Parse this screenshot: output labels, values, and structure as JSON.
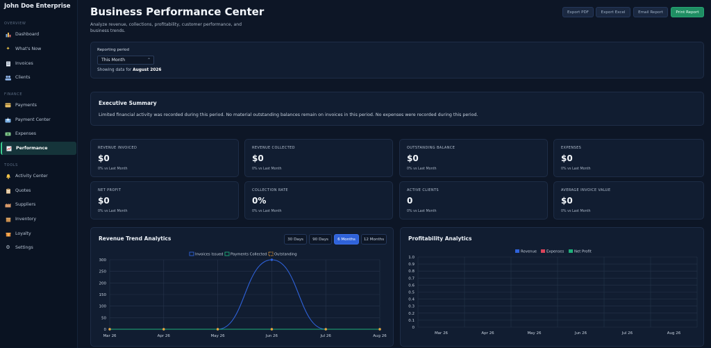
{
  "brand": "John Doe Enterprise",
  "sidebar": {
    "sections": [
      {
        "label": "OVERVIEW",
        "items": [
          {
            "label": "Dashboard",
            "icon": "dashboard-icon"
          },
          {
            "label": "What's Now",
            "icon": "sparkle-icon"
          },
          {
            "label": "Invoices",
            "icon": "invoice-icon"
          },
          {
            "label": "Clients",
            "icon": "users-icon"
          }
        ]
      },
      {
        "label": "FINANCE",
        "items": [
          {
            "label": "Payments",
            "icon": "card-icon"
          },
          {
            "label": "Payment Center",
            "icon": "inbox-icon"
          },
          {
            "label": "Expenses",
            "icon": "expenses-icon"
          },
          {
            "label": "Performance",
            "icon": "chart-icon",
            "active": true
          }
        ]
      },
      {
        "label": "TOOLS",
        "items": [
          {
            "label": "Activity Center",
            "icon": "bell-icon"
          },
          {
            "label": "Quotes",
            "icon": "clipboard-icon"
          },
          {
            "label": "Suppliers",
            "icon": "factory-icon"
          },
          {
            "label": "Inventory",
            "icon": "box-icon"
          },
          {
            "label": "Loyalty",
            "icon": "gift-icon"
          },
          {
            "label": "Settings",
            "icon": "gear-icon"
          }
        ]
      }
    ]
  },
  "header": {
    "title": "Business Performance Center",
    "description": "Analyze revenue, collections, profitability, customer performance, and business trends.",
    "buttons": [
      "Export PDF",
      "Export Excel",
      "Email Report",
      "Print Report"
    ]
  },
  "reporting": {
    "label": "Reporting period",
    "selected": "This Month",
    "showing_prefix": "Showing data for",
    "showing_value": "August 2026"
  },
  "summary": {
    "title": "Executive Summary",
    "text": "Limited financial activity was recorded during this period. No material outstanding balances remain on invoices in this period. No expenses were recorded during this period."
  },
  "kpis": [
    {
      "label": "REVENUE INVOICED",
      "value": "$0",
      "sub": "0% vs Last Month"
    },
    {
      "label": "REVENUE COLLECTED",
      "value": "$0",
      "sub": "0% vs Last Month"
    },
    {
      "label": "OUTSTANDING BALANCE",
      "value": "$0",
      "sub": "0% vs Last Month"
    },
    {
      "label": "EXPENSES",
      "value": "$0",
      "sub": "0% vs Last Month"
    },
    {
      "label": "NET PROFIT",
      "value": "$0",
      "sub": "0% vs Last Month"
    },
    {
      "label": "COLLECTION RATE",
      "value": "0%",
      "sub": "0% vs Last Month"
    },
    {
      "label": "ACTIVE CLIENTS",
      "value": "0",
      "sub": "0% vs Last Month"
    },
    {
      "label": "AVERAGE INVOICE VALUE",
      "value": "$0",
      "sub": "0% vs Last Month"
    }
  ],
  "revenue_chart": {
    "title": "Revenue Trend Analytics",
    "ranges": [
      "30 Days",
      "90 Days",
      "6 Months",
      "12 Months"
    ],
    "active_range": "6 Months"
  },
  "profit_chart": {
    "title": "Profitability Analytics"
  },
  "colors": {
    "accent": "#2f62d9",
    "primary_button": "#1f8e63",
    "invoices": "#2f62d9",
    "payments": "#1fb07a",
    "outstanding": "#f0a13a",
    "revenue": "#2f62d9",
    "expenses": "#d9435a",
    "net_profit": "#1fb07a"
  },
  "chart_data": [
    {
      "type": "line",
      "title": "Revenue Trend Analytics",
      "categories": [
        "Mar 26",
        "Apr 26",
        "May 26",
        "Jun 26",
        "Jul 26",
        "Aug 26"
      ],
      "ylim": [
        0,
        300
      ],
      "yticks": [
        0,
        50,
        100,
        150,
        200,
        250,
        300
      ],
      "series": [
        {
          "name": "Invoices Issued",
          "values": [
            0,
            0,
            0,
            300,
            0,
            0
          ]
        },
        {
          "name": "Payments Collected",
          "values": [
            0,
            0,
            0,
            0,
            0,
            0
          ]
        },
        {
          "name": "Outstanding",
          "values": [
            0,
            0,
            0,
            0,
            0,
            0
          ]
        }
      ],
      "grid": true,
      "legend": "top"
    },
    {
      "type": "bar",
      "title": "Profitability Analytics",
      "categories": [
        "Mar 26",
        "Apr 26",
        "May 26",
        "Jun 26",
        "Jul 26",
        "Aug 26"
      ],
      "ylim": [
        0,
        1.0
      ],
      "yticks": [
        0,
        0.1,
        0.2,
        0.3,
        0.4,
        0.5,
        0.6,
        0.7,
        0.8,
        0.9,
        1.0
      ],
      "series": [
        {
          "name": "Revenue",
          "values": [
            0,
            0,
            0,
            0,
            0,
            0
          ]
        },
        {
          "name": "Expenses",
          "values": [
            0,
            0,
            0,
            0,
            0,
            0
          ]
        },
        {
          "name": "Net Profit",
          "values": [
            0,
            0,
            0,
            0,
            0,
            0
          ]
        }
      ],
      "grid": true,
      "legend": "top"
    }
  ]
}
